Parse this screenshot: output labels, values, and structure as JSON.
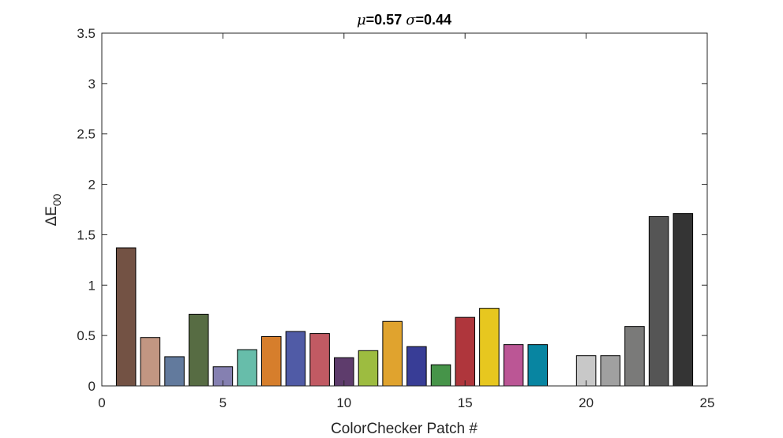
{
  "chart_data": {
    "type": "bar",
    "title": {
      "mu_symbol": "μ",
      "mu_value": "=0.57 ",
      "sigma_symbol": "σ",
      "sigma_value": "=0.44"
    },
    "xlabel": "ColorChecker Patch #",
    "ylabel": {
      "main": "ΔE",
      "subscript": "00"
    },
    "xlim": [
      0,
      25
    ],
    "ylim": [
      0,
      3.5
    ],
    "x_ticks": [
      0,
      5,
      10,
      15,
      20,
      25
    ],
    "x_tick_labels": [
      "0",
      "5",
      "10",
      "15",
      "20",
      "25"
    ],
    "y_ticks": [
      0,
      0.5,
      1,
      1.5,
      2,
      2.5,
      3,
      3.5
    ],
    "y_tick_labels": [
      "0",
      "0.5",
      "1",
      "1.5",
      "2",
      "2.5",
      "3",
      "3.5"
    ],
    "grid": false,
    "bars": [
      {
        "x": 1,
        "value": 1.37,
        "color": "#735244"
      },
      {
        "x": 2,
        "value": 0.48,
        "color": "#c29682"
      },
      {
        "x": 3,
        "value": 0.29,
        "color": "#627a9d"
      },
      {
        "x": 4,
        "value": 0.71,
        "color": "#576c43"
      },
      {
        "x": 5,
        "value": 0.19,
        "color": "#8580b1"
      },
      {
        "x": 6,
        "value": 0.36,
        "color": "#67bdaa"
      },
      {
        "x": 7,
        "value": 0.49,
        "color": "#d67e2c"
      },
      {
        "x": 8,
        "value": 0.54,
        "color": "#505ba6"
      },
      {
        "x": 9,
        "value": 0.52,
        "color": "#c15a63"
      },
      {
        "x": 10,
        "value": 0.28,
        "color": "#5e3c6c"
      },
      {
        "x": 11,
        "value": 0.35,
        "color": "#9dbc40"
      },
      {
        "x": 12,
        "value": 0.64,
        "color": "#e0a32e"
      },
      {
        "x": 13,
        "value": 0.39,
        "color": "#383d96"
      },
      {
        "x": 14,
        "value": 0.21,
        "color": "#469449"
      },
      {
        "x": 15,
        "value": 0.68,
        "color": "#af363c"
      },
      {
        "x": 16,
        "value": 0.77,
        "color": "#e7c71f"
      },
      {
        "x": 17,
        "value": 0.41,
        "color": "#bb5695"
      },
      {
        "x": 18,
        "value": 0.41,
        "color": "#0885a1"
      },
      {
        "x": 19,
        "value": 0.0,
        "color": "#f3f3f2"
      },
      {
        "x": 20,
        "value": 0.3,
        "color": "#c8c8c8"
      },
      {
        "x": 21,
        "value": 0.3,
        "color": "#a0a0a0"
      },
      {
        "x": 22,
        "value": 0.59,
        "color": "#7a7a79"
      },
      {
        "x": 23,
        "value": 1.68,
        "color": "#555555"
      },
      {
        "x": 24,
        "value": 1.71,
        "color": "#343434"
      }
    ]
  }
}
